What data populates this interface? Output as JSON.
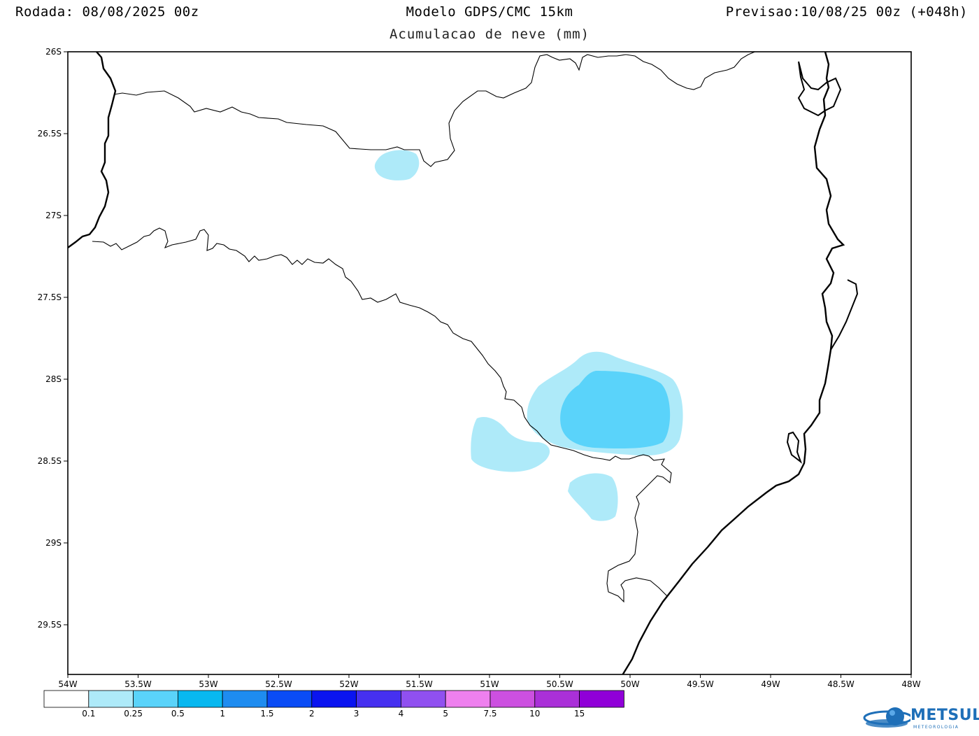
{
  "header": {
    "run": "Rodada: 08/08/2025 00z",
    "model": "Modelo GDPS/CMC 15km",
    "subtitle": "Acumulacao de neve (mm)",
    "valid": "Previsao:10/08/25 00z (+048h)"
  },
  "map": {
    "lon_range": [
      -54,
      -48
    ],
    "lat_range": [
      -29.8,
      -26
    ],
    "lat_ticks": [
      "26S",
      "26.5S",
      "27S",
      "27.5S",
      "28S",
      "28.5S",
      "29S",
      "29.5S"
    ],
    "lon_ticks": [
      "54W",
      "53.5W",
      "53W",
      "52.5W",
      "52W",
      "51.5W",
      "51W",
      "50.5W",
      "50W",
      "49.5W",
      "49W",
      "48.5W",
      "48W"
    ]
  },
  "legend": {
    "thresholds": [
      "0.1",
      "0.25",
      "0.5",
      "1",
      "1.5",
      "2",
      "3",
      "4",
      "5",
      "7.5",
      "10",
      "15"
    ],
    "colors": [
      "#ffffff",
      "#aeeaf9",
      "#5ad3fa",
      "#08b8f0",
      "#1e8cf0",
      "#0a4cf5",
      "#0a14f0",
      "#4630f0",
      "#9050f0",
      "#ee80ee",
      "#cc50e0",
      "#aa30d8",
      "#9000d8"
    ]
  },
  "snow_fields": [
    {
      "name": "sc-north-patch",
      "level": "0.1"
    },
    {
      "name": "serra-outer",
      "level": "0.1"
    },
    {
      "name": "serra-inner",
      "level": "0.25"
    },
    {
      "name": "west-patch",
      "level": "0.1"
    },
    {
      "name": "south-patch",
      "level": "0.1"
    }
  ],
  "brand": {
    "name": "METSUL",
    "tagline": "METEOROLOGIA",
    "color": "#1e6fb8"
  }
}
